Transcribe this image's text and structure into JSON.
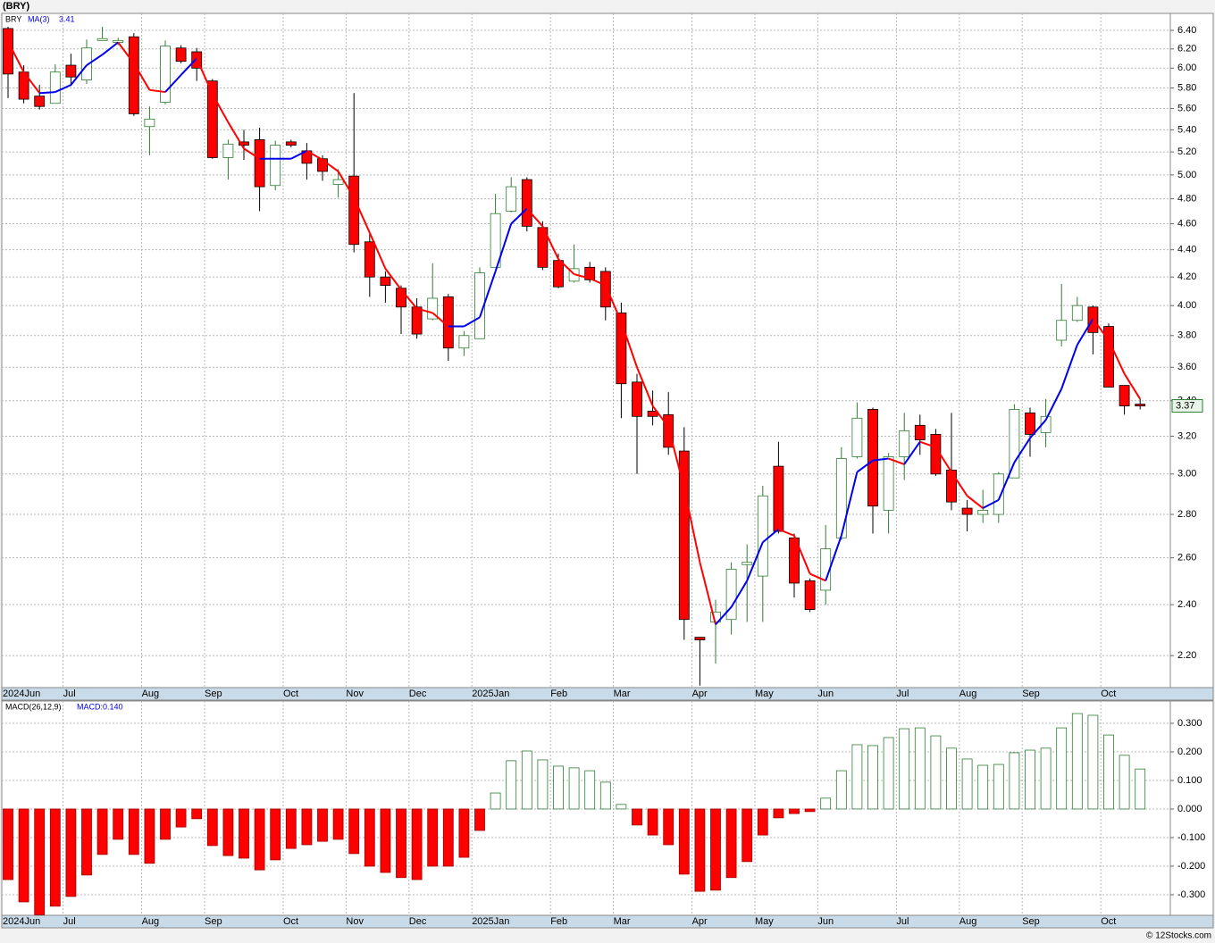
{
  "title": "(BRY)",
  "source": "© 12Stocks.com",
  "chart_data": [
    {
      "type": "candlestick",
      "symbol": "BRY",
      "log_scale": true,
      "grid": true,
      "up_color": "#2e7d32",
      "down_color": "#ff0000",
      "categories": [
        "2024Jun",
        null,
        null,
        null,
        "Jul",
        null,
        null,
        null,
        null,
        "Aug",
        null,
        null,
        null,
        "Sep",
        null,
        null,
        null,
        null,
        "Oct",
        null,
        null,
        null,
        "Nov",
        null,
        null,
        null,
        "Dec",
        null,
        null,
        null,
        "2025Jan",
        null,
        null,
        null,
        null,
        "Feb",
        null,
        null,
        null,
        "Mar",
        null,
        null,
        null,
        null,
        "Apr",
        null,
        null,
        null,
        "May",
        null,
        null,
        null,
        "Jun",
        null,
        null,
        null,
        null,
        "Jul",
        null,
        null,
        null,
        "Aug",
        null,
        null,
        null,
        "Sep",
        null,
        null,
        null,
        null,
        "Oct",
        null,
        null
      ],
      "open": [
        6.42,
        5.96,
        5.72,
        5.65,
        6.03,
        5.88,
        6.29,
        6.27,
        6.33,
        5.43,
        5.66,
        6.21,
        6.17,
        5.87,
        5.15,
        5.29,
        5.31,
        4.91,
        5.29,
        5.21,
        5.14,
        4.92,
        4.99,
        4.46,
        4.2,
        4.12,
        3.99,
        3.91,
        4.06,
        3.72,
        3.78,
        4.27,
        4.7,
        4.96,
        4.57,
        4.32,
        4.17,
        4.27,
        4.24,
        3.95,
        3.51,
        3.34,
        3.32,
        3.12,
        2.27,
        2.33,
        2.34,
        2.57,
        2.52,
        3.04,
        2.69,
        2.5,
        2.46,
        2.69,
        3.09,
        3.35,
        2.82,
        3.09,
        3.26,
        3.21,
        3.02,
        2.83,
        2.8,
        2.8,
        2.98,
        3.33,
        3.22,
        3.77,
        3.9,
        3.99,
        3.86,
        3.49,
        3.38
      ],
      "high": [
        6.44,
        6.03,
        5.83,
        6.04,
        6.15,
        6.3,
        6.44,
        6.32,
        6.37,
        5.62,
        6.29,
        6.24,
        6.21,
        5.89,
        5.31,
        5.4,
        5.42,
        5.3,
        5.31,
        5.28,
        5.17,
        5.05,
        5.75,
        4.52,
        4.24,
        4.14,
        4.05,
        4.3,
        4.08,
        3.83,
        4.27,
        4.84,
        4.98,
        4.98,
        4.62,
        4.37,
        4.44,
        4.31,
        4.27,
        4.02,
        3.56,
        3.46,
        3.45,
        3.25,
        2.27,
        2.42,
        2.58,
        2.66,
        2.94,
        3.17,
        2.71,
        2.51,
        2.75,
        3.14,
        3.39,
        3.36,
        3.11,
        3.33,
        3.32,
        3.24,
        3.33,
        2.87,
        2.92,
        3.01,
        3.38,
        3.36,
        3.41,
        4.15,
        4.06,
        4.0,
        3.88,
        3.49,
        3.41
      ],
      "low": [
        5.7,
        5.65,
        5.59,
        5.65,
        5.82,
        5.84,
        6.29,
        6.24,
        5.53,
        5.17,
        5.64,
        6.05,
        5.87,
        5.14,
        4.96,
        5.13,
        4.7,
        4.87,
        5.24,
        4.96,
        4.95,
        4.81,
        4.38,
        4.06,
        4.02,
        3.81,
        3.78,
        3.9,
        3.64,
        3.67,
        3.78,
        4.27,
        4.69,
        4.54,
        4.25,
        4.12,
        4.16,
        4.16,
        3.9,
        3.3,
        3.0,
        3.26,
        3.1,
        2.26,
        2.09,
        2.17,
        2.28,
        2.33,
        2.33,
        2.71,
        2.43,
        2.37,
        2.4,
        2.68,
        3.08,
        2.71,
        2.71,
        2.97,
        3.1,
        2.99,
        2.82,
        2.72,
        2.76,
        2.76,
        2.98,
        3.09,
        3.14,
        3.73,
        3.89,
        3.68,
        3.48,
        3.32,
        3.35
      ],
      "close": [
        5.94,
        5.69,
        5.62,
        5.96,
        5.91,
        6.21,
        6.31,
        6.29,
        5.55,
        5.5,
        6.23,
        6.07,
        6.0,
        5.15,
        5.27,
        5.26,
        4.9,
        5.26,
        5.26,
        5.1,
        5.03,
        4.96,
        4.44,
        4.2,
        4.14,
        3.99,
        3.81,
        4.05,
        3.72,
        3.8,
        4.23,
        4.68,
        4.9,
        4.58,
        4.27,
        4.13,
        4.26,
        4.18,
        3.99,
        3.5,
        3.31,
        3.31,
        3.14,
        2.34,
        2.26,
        2.37,
        2.55,
        2.58,
        2.89,
        2.72,
        2.49,
        2.38,
        2.64,
        3.08,
        3.3,
        2.84,
        3.09,
        3.23,
        3.18,
        3.0,
        2.86,
        2.8,
        2.82,
        3.0,
        3.35,
        3.21,
        3.31,
        3.9,
        4.0,
        3.82,
        3.48,
        3.37,
        3.37
      ],
      "series": [
        {
          "name": "MA(3)",
          "rising_color": "#0000ee",
          "falling_color": "#ff0000",
          "values": [
            6.28,
            5.96,
            5.75,
            5.76,
            5.83,
            6.03,
            6.14,
            6.27,
            6.05,
            5.78,
            5.76,
            5.93,
            6.1,
            5.74,
            5.47,
            5.23,
            5.14,
            5.14,
            5.14,
            5.21,
            5.13,
            5.03,
            4.81,
            4.53,
            4.26,
            4.11,
            3.98,
            3.95,
            3.86,
            3.86,
            3.92,
            4.24,
            4.6,
            4.72,
            4.58,
            4.33,
            4.22,
            4.19,
            4.14,
            3.89,
            3.6,
            3.37,
            3.25,
            2.93,
            2.58,
            2.32,
            2.39,
            2.5,
            2.67,
            2.73,
            2.7,
            2.53,
            2.5,
            2.7,
            3.01,
            3.07,
            3.08,
            3.05,
            3.17,
            3.14,
            3.01,
            2.89,
            2.83,
            2.87,
            3.06,
            3.19,
            3.29,
            3.47,
            3.74,
            3.91,
            3.77,
            3.56,
            3.41
          ]
        }
      ],
      "ylim": [
        2.083,
        6.588
      ],
      "yticks": [
        {
          "value": 2.2,
          "label": "2.20"
        },
        {
          "value": 2.4,
          "label": "2.40"
        },
        {
          "value": 2.6,
          "label": "2.60"
        },
        {
          "value": 2.8,
          "label": "2.80"
        },
        {
          "value": 3.0,
          "label": "3.00"
        },
        {
          "value": 3.2,
          "label": "3.20"
        },
        {
          "value": 3.4,
          "label": "3.40"
        },
        {
          "value": 3.6,
          "label": "3.60"
        },
        {
          "value": 3.8,
          "label": "3.80"
        },
        {
          "value": 4.0,
          "label": "4.00"
        },
        {
          "value": 4.2,
          "label": "4.20"
        },
        {
          "value": 4.4,
          "label": "4.40"
        },
        {
          "value": 4.6,
          "label": "4.60"
        },
        {
          "value": 4.8,
          "label": "4.80"
        },
        {
          "value": 5.0,
          "label": "5.00"
        },
        {
          "value": 5.2,
          "label": "5.20"
        },
        {
          "value": 5.4,
          "label": "5.40"
        },
        {
          "value": 5.6,
          "label": "5.60"
        },
        {
          "value": 5.8,
          "label": "5.80"
        },
        {
          "value": 6.0,
          "label": "6.00"
        },
        {
          "value": 6.2,
          "label": "6.20"
        },
        {
          "value": 6.4,
          "label": "6.40"
        }
      ]
    },
    {
      "type": "bar",
      "title": "MACD(26,12,9)",
      "value_label": "MACD:0.140",
      "grid": true,
      "pos_color": "#2e7d32",
      "neg_color": "#ff0000",
      "categories": [
        "2024Jun",
        null,
        null,
        null,
        "Jul",
        null,
        null,
        null,
        null,
        "Aug",
        null,
        null,
        null,
        "Sep",
        null,
        null,
        null,
        null,
        "Oct",
        null,
        null,
        null,
        "Nov",
        null,
        null,
        null,
        "Dec",
        null,
        null,
        null,
        "2025Jan",
        null,
        null,
        null,
        null,
        "Feb",
        null,
        null,
        null,
        "Mar",
        null,
        null,
        null,
        null,
        "Apr",
        null,
        null,
        null,
        "May",
        null,
        null,
        null,
        "Jun",
        null,
        null,
        null,
        null,
        "Jul",
        null,
        null,
        null,
        "Aug",
        null,
        null,
        null,
        "Sep",
        null,
        null,
        null,
        null,
        "Oct",
        null,
        null
      ],
      "values": [
        -0.247,
        -0.325,
        -0.37,
        -0.34,
        -0.306,
        -0.231,
        -0.159,
        -0.106,
        -0.159,
        -0.19,
        -0.106,
        -0.063,
        -0.034,
        -0.128,
        -0.163,
        -0.172,
        -0.213,
        -0.178,
        -0.138,
        -0.125,
        -0.113,
        -0.106,
        -0.156,
        -0.2,
        -0.222,
        -0.24,
        -0.247,
        -0.2,
        -0.2,
        -0.169,
        -0.075,
        0.056,
        0.169,
        0.203,
        0.172,
        0.15,
        0.144,
        0.134,
        0.094,
        0.016,
        -0.056,
        -0.091,
        -0.125,
        -0.228,
        -0.288,
        -0.284,
        -0.24,
        -0.184,
        -0.091,
        -0.031,
        -0.016,
        -0.009,
        0.038,
        0.134,
        0.225,
        0.222,
        0.25,
        0.281,
        0.284,
        0.256,
        0.213,
        0.175,
        0.153,
        0.156,
        0.197,
        0.206,
        0.213,
        0.284,
        0.334,
        0.328,
        0.259,
        0.188,
        0.14
      ],
      "ylim": [
        -0.372,
        0.378
      ],
      "yticks": [
        {
          "value": -0.3,
          "label": "-0.300"
        },
        {
          "value": -0.2,
          "label": "-0.200"
        },
        {
          "value": -0.1,
          "label": "-0.100"
        },
        {
          "value": 0,
          "label": "0.000"
        },
        {
          "value": 0.1,
          "label": "0.100"
        },
        {
          "value": 0.2,
          "label": "0.200"
        },
        {
          "value": 0.3,
          "label": "0.300"
        }
      ]
    }
  ]
}
